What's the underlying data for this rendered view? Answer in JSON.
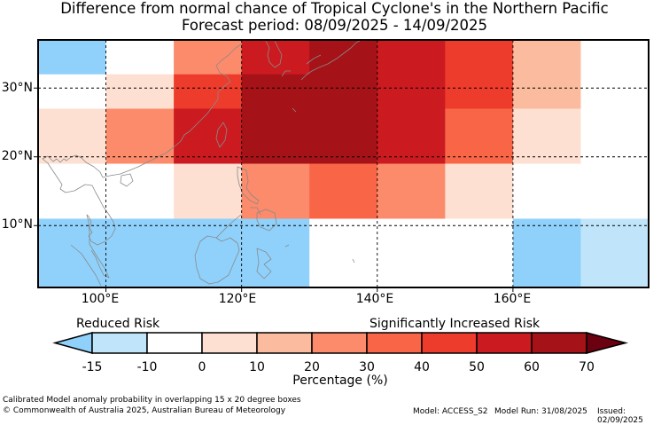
{
  "title_line1": "Difference from normal chance of Tropical Cyclone's in the Northern Pacific",
  "title_line2": "Forecast period: 08/09/2025 - 14/09/2025",
  "map": {
    "lon_range": [
      90,
      180
    ],
    "lat_range": [
      1,
      37
    ],
    "lat_ticks": [
      "30°N",
      "20°N",
      "10°N"
    ],
    "lon_ticks": [
      "100°E",
      "120°E",
      "140°E",
      "160°E"
    ],
    "grid_columns_lon": [
      [
        90,
        100
      ],
      [
        100,
        110
      ],
      [
        110,
        120
      ],
      [
        120,
        130
      ],
      [
        130,
        140
      ],
      [
        140,
        150
      ],
      [
        150,
        160
      ],
      [
        160,
        170
      ],
      [
        170,
        180
      ]
    ],
    "grid_rows_lat": [
      [
        32,
        37
      ],
      [
        27,
        32
      ],
      [
        19,
        27
      ],
      [
        11,
        19
      ],
      [
        1,
        11
      ]
    ],
    "cell_classes": [
      [
        "-15",
        "0",
        "30",
        "60",
        "70",
        "60",
        "50",
        "20",
        "0"
      ],
      [
        "0",
        "10",
        "50",
        "70",
        "70",
        "60",
        "50",
        "20",
        "0"
      ],
      [
        "10",
        "30",
        "60",
        "70",
        "70",
        "60",
        "40",
        "10",
        "0"
      ],
      [
        "0",
        "0",
        "10",
        "30",
        "40",
        "30",
        "10",
        "0",
        "0"
      ],
      [
        "-15",
        "-15",
        "-15",
        "-15",
        "0",
        "0",
        "0",
        "-15",
        "-10"
      ]
    ]
  },
  "colorbar": {
    "left_label": "Reduced Risk",
    "right_label": "Significantly Increased Risk",
    "ticks": [
      "-15",
      "-10",
      "0",
      "10",
      "20",
      "30",
      "40",
      "50",
      "60",
      "70"
    ],
    "colors": {
      "-15": "#8fd1fb",
      "-10": "#c0e5fb",
      "0": "#ffffff",
      "10": "#fde0d2",
      "20": "#fbbb9e",
      "30": "#fc8b6b",
      "40": "#f96647",
      "50": "#ed3b2c",
      "60": "#cb1b20",
      "70": "#a51218",
      "over": "#6a0010"
    },
    "label": "Percentage (%)"
  },
  "footer": {
    "line1": "Calibrated Model anomaly probability in overlapping 15 x 20 degree boxes",
    "line2": "© Commonwealth of Australia 2025, Australian Bureau of Meteorology",
    "model": "Model: ACCESS_S2",
    "run": "Model Run: 31/08/2025",
    "issued": "Issued: 02/09/2025"
  }
}
